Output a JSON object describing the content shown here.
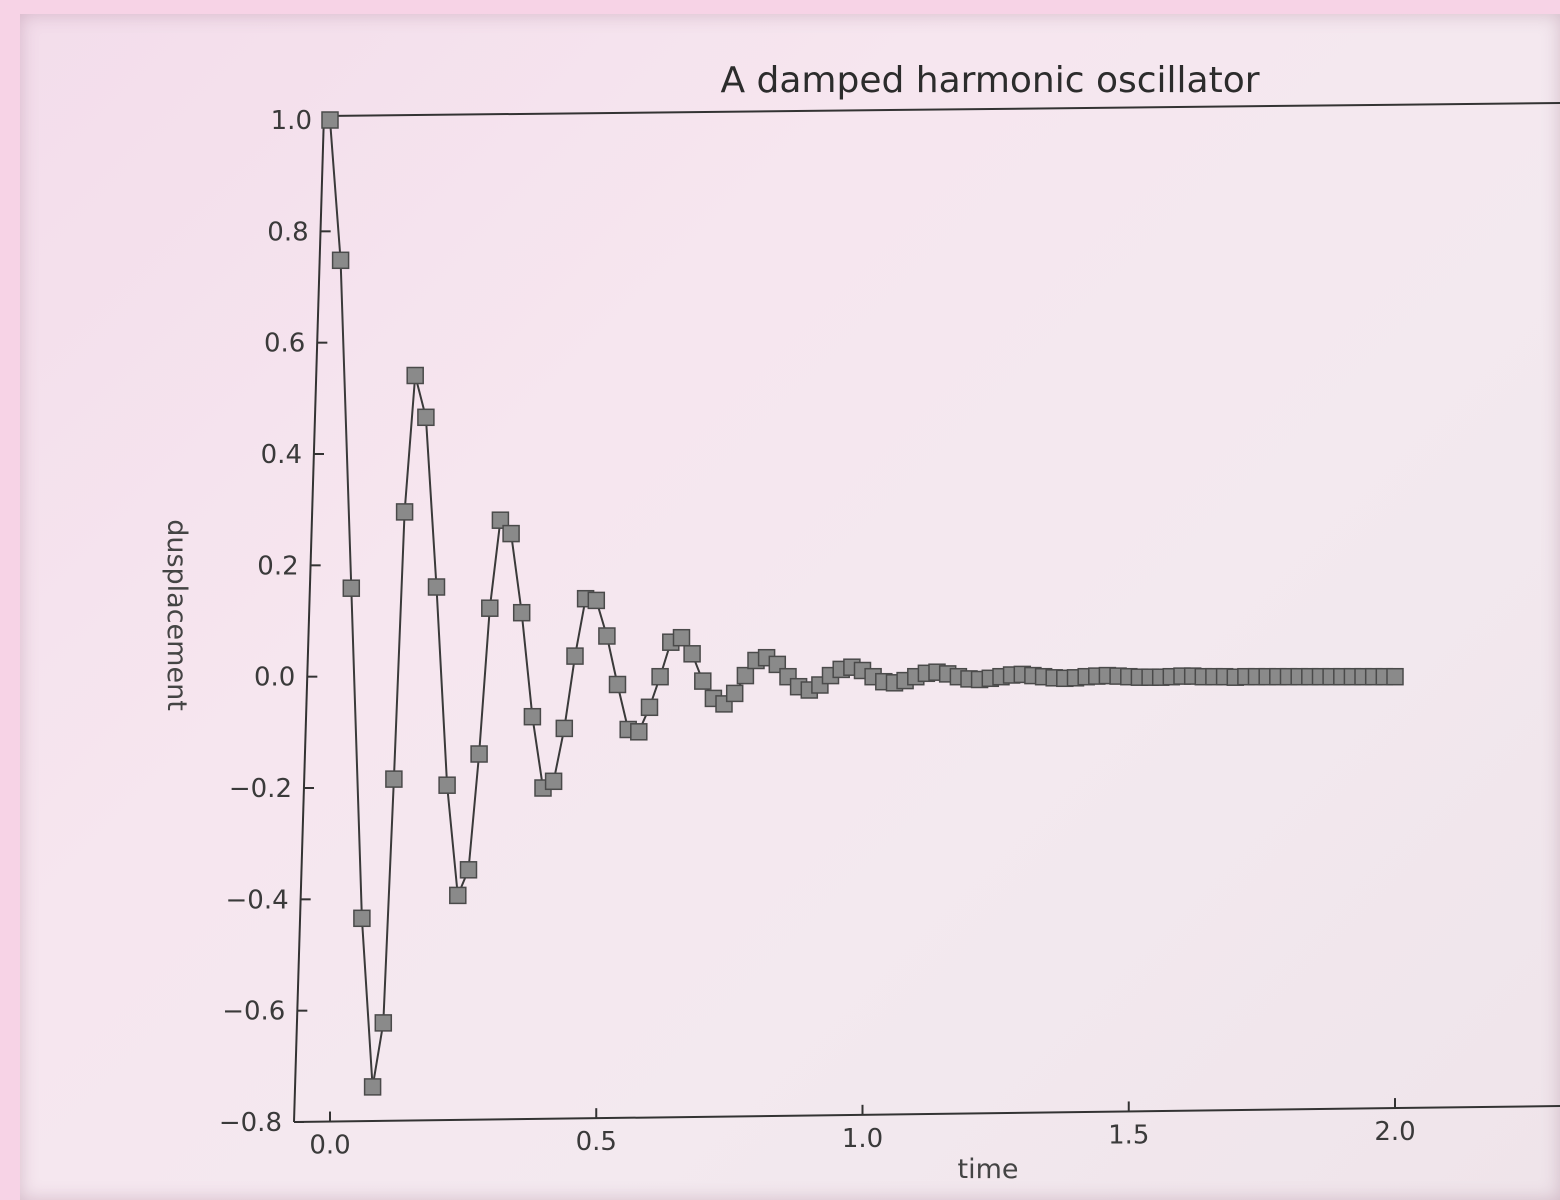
{
  "chart_data": {
    "type": "line",
    "title": "A damped harmonic oscillator",
    "xlabel": "time",
    "ylabel": "dusplacement",
    "xlim": [
      0.0,
      2.0
    ],
    "ylim": [
      -0.8,
      1.0
    ],
    "xticks": [
      "0.0",
      "0.5",
      "1.0",
      "1.5",
      "2.0"
    ],
    "yticks": [
      "1.0",
      "0.8",
      "0.6",
      "0.4",
      "0.2",
      "0.0",
      "−0.2",
      "−0.4",
      "−0.6",
      "−0.8"
    ],
    "grid": false,
    "marker": "square",
    "line_color": "#3a3a3a",
    "marker_color": "#8a8a8a",
    "series": [
      {
        "x": [
          0.0,
          0.02,
          0.04,
          0.06,
          0.08,
          0.1,
          0.12,
          0.14,
          0.16,
          0.18,
          0.2,
          0.22,
          0.24,
          0.26,
          0.28,
          0.3,
          0.32,
          0.34,
          0.36,
          0.38,
          0.4,
          0.42,
          0.44,
          0.46,
          0.48,
          0.5,
          0.52,
          0.54,
          0.56,
          0.58,
          0.6,
          0.62,
          0.64,
          0.66,
          0.68,
          0.7,
          0.72,
          0.74,
          0.76,
          0.78,
          0.8,
          0.82,
          0.84,
          0.86,
          0.88,
          0.9,
          0.92,
          0.94,
          0.96,
          0.98,
          1.0,
          1.02,
          1.04,
          1.06,
          1.08,
          1.1,
          1.12,
          1.14,
          1.16,
          1.18,
          1.2,
          1.22,
          1.24,
          1.26,
          1.28,
          1.3,
          1.32,
          1.34,
          1.36,
          1.38,
          1.4,
          1.42,
          1.44,
          1.46,
          1.48,
          1.5,
          1.52,
          1.54,
          1.56,
          1.58,
          1.6,
          1.62,
          1.64,
          1.66,
          1.68,
          1.7,
          1.72,
          1.74,
          1.76,
          1.78,
          1.8,
          1.82,
          1.84,
          1.86,
          1.88,
          1.9,
          1.92,
          1.94,
          1.96,
          1.98,
          2.0
        ],
        "values": [
          1.0,
          0.748,
          0.159,
          -0.434,
          -0.737,
          -0.622,
          -0.184,
          0.296,
          0.541,
          0.466,
          0.161,
          -0.195,
          -0.393,
          -0.347,
          -0.139,
          0.123,
          0.281,
          0.257,
          0.115,
          -0.072,
          -0.2,
          -0.188,
          -0.093,
          0.037,
          0.14,
          0.137,
          0.073,
          -0.014,
          -0.095,
          -0.099,
          -0.055,
          0.0,
          0.062,
          0.07,
          0.041,
          -0.008,
          -0.039,
          -0.049,
          -0.03,
          0.002,
          0.029,
          0.034,
          0.022,
          0.0,
          -0.018,
          -0.024,
          -0.015,
          0.002,
          0.013,
          0.017,
          0.011,
          0.0,
          -0.009,
          -0.011,
          -0.007,
          0.0,
          0.006,
          0.008,
          0.005,
          0.0,
          -0.004,
          -0.005,
          -0.003,
          0.0,
          0.003,
          0.004,
          0.002,
          0.0,
          -0.002,
          -0.003,
          -0.002,
          0.0,
          0.001,
          0.002,
          0.001,
          0.0,
          -0.001,
          -0.001,
          -0.001,
          0.0,
          0.001,
          0.001,
          0.0,
          0.0,
          0.0,
          -0.001,
          0.0,
          0.0,
          0.0,
          0.0,
          0.0,
          0.0,
          0.0,
          0.0,
          0.0,
          0.0,
          0.0,
          0.0,
          0.0,
          0.0,
          0.0
        ]
      }
    ]
  }
}
